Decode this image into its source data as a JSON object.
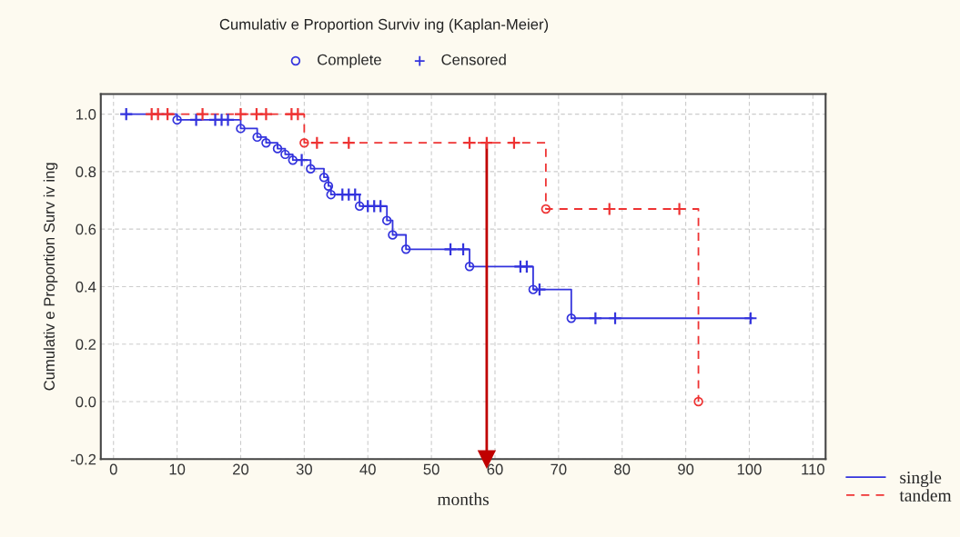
{
  "chart_data": {
    "type": "step",
    "title": "Cumulativ e Proportion Surviv ing (Kaplan-Meier)",
    "xlabel": "months",
    "ylabel": "Cumulativ e Proportion Surv iv ing",
    "xlim": [
      -2,
      112
    ],
    "ylim": [
      -0.2,
      1.07
    ],
    "xticks": [
      0,
      10,
      20,
      30,
      40,
      50,
      60,
      70,
      80,
      90,
      100,
      110
    ],
    "yticks": [
      {
        "value": -0.2,
        "label": "-0.2"
      },
      {
        "value": 0.0,
        "label": "0.0"
      },
      {
        "value": 0.2,
        "label": "0.2"
      },
      {
        "value": 0.4,
        "label": "0.4"
      },
      {
        "value": 0.6,
        "label": "0.6"
      },
      {
        "value": 0.8,
        "label": "0.8"
      },
      {
        "value": 1.0,
        "label": "1.0"
      }
    ],
    "grid": true,
    "legend": "bottom right",
    "series": [
      {
        "name": "single",
        "color": "#3333dd",
        "line_style": "solid",
        "marker": "none",
        "x": [
          2,
          10,
          20,
          22.6,
          24,
          25.8,
          27,
          28.2,
          31,
          33.1,
          33.8,
          34.2,
          38.7,
          43,
          43.9,
          46,
          56,
          66,
          72,
          100.5
        ],
        "values": [
          1.0,
          0.98,
          0.95,
          0.92,
          0.9,
          0.88,
          0.86,
          0.84,
          0.81,
          0.78,
          0.75,
          0.72,
          0.68,
          0.63,
          0.58,
          0.53,
          0.47,
          0.39,
          0.29,
          0.29
        ]
      },
      {
        "name": "tandem",
        "color": "#ee3333",
        "line_style": "dashed",
        "marker": "none",
        "x": [
          6,
          30,
          68,
          92
        ],
        "values": [
          1.0,
          0.9,
          0.67,
          0.0
        ]
      },
      {
        "name": "Complete",
        "type": "scatter",
        "color": "#3333dd",
        "marker": "circle",
        "x": [
          10,
          20,
          22.6,
          24,
          25.8,
          27,
          28.2,
          31,
          33.1,
          33.8,
          34.2,
          38.7,
          43,
          43.9,
          46,
          56,
          66,
          72,
          30,
          68,
          92
        ],
        "values": [
          0.98,
          0.95,
          0.92,
          0.9,
          0.88,
          0.86,
          0.84,
          0.81,
          0.78,
          0.75,
          0.72,
          0.68,
          0.63,
          0.58,
          0.53,
          0.47,
          0.39,
          0.29,
          0.9,
          0.67,
          0.0
        ],
        "colors": [
          "#3333dd",
          "#3333dd",
          "#3333dd",
          "#3333dd",
          "#3333dd",
          "#3333dd",
          "#3333dd",
          "#3333dd",
          "#3333dd",
          "#3333dd",
          "#3333dd",
          "#3333dd",
          "#3333dd",
          "#3333dd",
          "#3333dd",
          "#3333dd",
          "#3333dd",
          "#3333dd",
          "#ee3333",
          "#ee3333",
          "#ee3333"
        ]
      },
      {
        "name": "Censored",
        "type": "scatter",
        "color": "#3333dd",
        "marker": "cross",
        "x": [
          2,
          13,
          16,
          17,
          18,
          29.6,
          36,
          37,
          38,
          40,
          41,
          42,
          53,
          55,
          64,
          65,
          67,
          75.8,
          78.9,
          100.2,
          6,
          7,
          8.5,
          14,
          20,
          22.5,
          24,
          28,
          29,
          32,
          37,
          56,
          58.7,
          63,
          78,
          89
        ],
        "values": [
          1.0,
          0.98,
          0.98,
          0.98,
          0.98,
          0.84,
          0.72,
          0.72,
          0.72,
          0.68,
          0.68,
          0.68,
          0.53,
          0.53,
          0.47,
          0.47,
          0.39,
          0.29,
          0.29,
          0.29,
          1.0,
          1.0,
          1.0,
          1.0,
          1.0,
          1.0,
          1.0,
          1.0,
          1.0,
          0.9,
          0.9,
          0.9,
          0.9,
          0.9,
          0.67,
          0.67
        ],
        "colors": [
          "#3333dd",
          "#3333dd",
          "#3333dd",
          "#3333dd",
          "#3333dd",
          "#3333dd",
          "#3333dd",
          "#3333dd",
          "#3333dd",
          "#3333dd",
          "#3333dd",
          "#3333dd",
          "#3333dd",
          "#3333dd",
          "#3333dd",
          "#3333dd",
          "#3333dd",
          "#3333dd",
          "#3333dd",
          "#3333dd",
          "#ee3333",
          "#ee3333",
          "#ee3333",
          "#ee3333",
          "#ee3333",
          "#ee3333",
          "#ee3333",
          "#ee3333",
          "#ee3333",
          "#ee3333",
          "#ee3333",
          "#ee3333",
          "#ee3333",
          "#ee3333",
          "#ee3333",
          "#ee3333"
        ]
      }
    ],
    "ref_lines": [
      {
        "axis": "x",
        "value": 58.7,
        "color": "#c00000"
      }
    ]
  }
}
